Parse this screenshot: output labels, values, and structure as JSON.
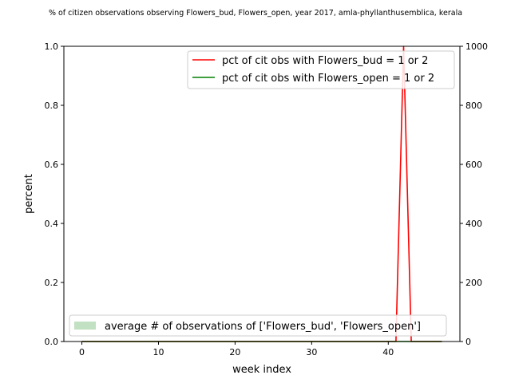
{
  "chart_data": {
    "type": "line",
    "title": "% of citizen observations observing Flowers_bud, Flowers_open, year 2017, amla-phyllanthusemblica, kerala",
    "xlabel": "week index",
    "ylabel": "percent",
    "xlim": [
      -2.35,
      49.35
    ],
    "ylim": [
      0,
      1
    ],
    "y2lim": [
      0,
      1000
    ],
    "xticks": [
      0,
      10,
      20,
      30,
      40
    ],
    "yticks": [
      0.0,
      0.2,
      0.4,
      0.6,
      0.8,
      1.0
    ],
    "y2ticks": [
      0,
      200,
      400,
      600,
      800,
      1000
    ],
    "xtick_labels": [
      "0",
      "10",
      "20",
      "30",
      "40"
    ],
    "ytick_labels": [
      "0.0",
      "0.2",
      "0.4",
      "0.6",
      "0.8",
      "1.0"
    ],
    "y2tick_labels": [
      "0",
      "200",
      "400",
      "600",
      "800",
      "1000"
    ],
    "x": [
      0,
      1,
      2,
      3,
      4,
      5,
      6,
      7,
      8,
      9,
      10,
      11,
      12,
      13,
      14,
      15,
      16,
      17,
      18,
      19,
      20,
      21,
      22,
      23,
      24,
      25,
      26,
      27,
      28,
      29,
      30,
      31,
      32,
      33,
      34,
      35,
      36,
      37,
      38,
      39,
      40,
      41,
      42,
      43,
      44,
      45,
      46,
      47
    ],
    "series": [
      {
        "name": "pct of cit obs with Flowers_bud = 1 or 2",
        "color": "#ff0000",
        "axis": "left",
        "values": [
          0,
          0,
          0,
          0,
          0,
          0,
          0,
          0,
          0,
          0,
          0,
          0,
          0,
          0,
          0,
          0,
          0,
          0,
          0,
          0,
          0,
          0,
          0,
          0,
          0,
          0,
          0,
          0,
          0,
          0,
          0,
          0,
          0,
          0,
          0,
          0,
          0,
          0,
          0,
          0,
          0,
          0,
          1,
          0,
          0,
          0,
          0,
          0
        ]
      },
      {
        "name": "pct of cit obs with Flowers_open = 1 or 2",
        "color": "#008000",
        "axis": "left",
        "values": [
          0,
          0,
          0,
          0,
          0,
          0,
          0,
          0,
          0,
          0,
          0,
          0,
          0,
          0,
          0,
          0,
          0,
          0,
          0,
          0,
          0,
          0,
          0,
          0,
          0,
          0,
          0,
          0,
          0,
          0,
          0,
          0,
          0,
          0,
          0,
          0,
          0,
          0,
          0,
          0,
          0,
          0,
          0,
          0,
          0,
          0,
          0,
          0
        ]
      },
      {
        "name": "average # of observations of ['Flowers_bud', 'Flowers_open']",
        "color": "#c2e0c2",
        "axis": "right",
        "type": "area",
        "values": [
          0,
          0,
          0,
          0,
          0,
          0,
          0,
          0,
          0,
          0,
          0,
          0,
          0,
          0,
          0,
          0,
          0,
          0,
          0,
          0,
          0,
          0,
          0,
          0,
          0,
          0,
          0,
          0,
          0,
          0,
          0,
          0,
          0,
          0,
          0,
          0,
          0,
          0,
          0,
          0,
          0,
          0,
          0,
          0,
          0,
          0,
          0,
          0
        ]
      }
    ],
    "legend_upper": "top-right",
    "legend_lower": "bottom-left",
    "grid": false
  }
}
